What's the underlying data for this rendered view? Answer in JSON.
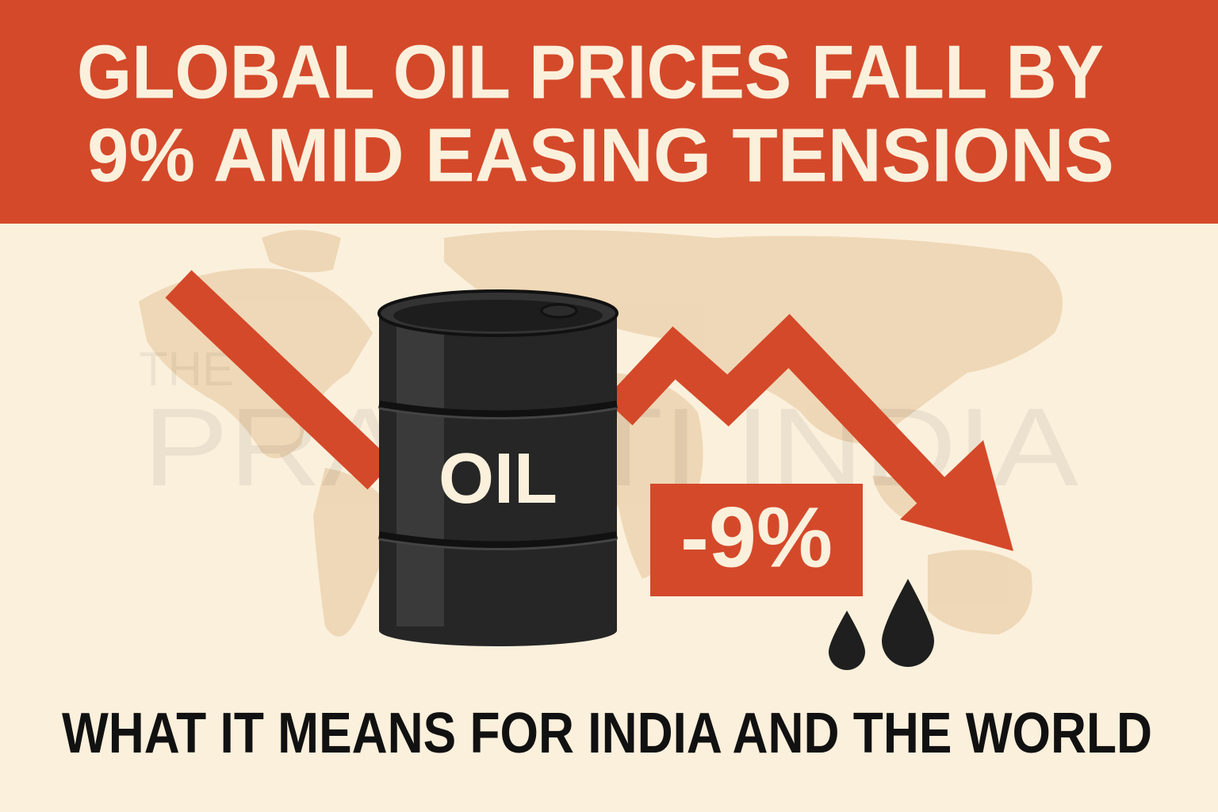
{
  "header": {
    "title_lines": [
      "GLOBAL OIL PRICES FALL BY",
      "9% AMID EASING TENSIONS"
    ]
  },
  "watermark": {
    "lines": [
      "THE",
      "PRAGATI INDIA"
    ]
  },
  "barrel": {
    "label": "OIL"
  },
  "badge": {
    "text": "-9%"
  },
  "footer": {
    "subtitle": "WHAT IT MEANS FOR INDIA AND THE WORLD"
  }
}
